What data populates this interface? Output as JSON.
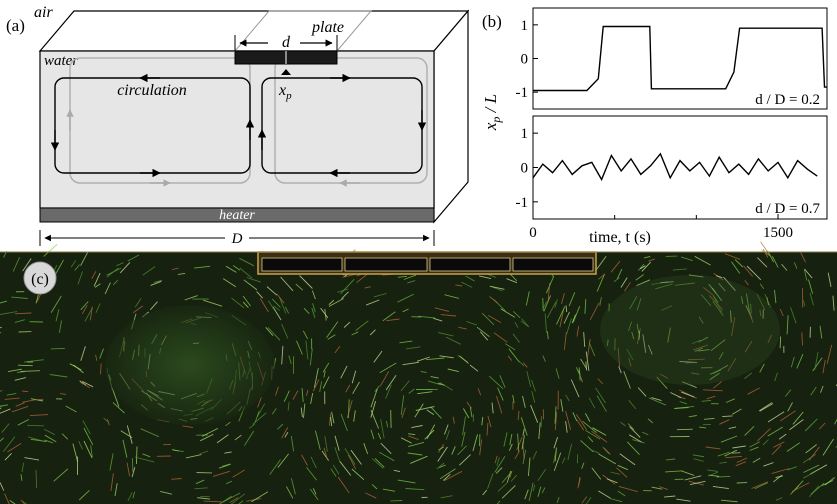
{
  "panel_a": {
    "label": "(a)",
    "air": "air",
    "water": "water",
    "plate": "plate",
    "plate_width": "d",
    "circulation": "circulation",
    "plate_position": "x",
    "plate_position_sub": "p",
    "heater": "heater",
    "tank_width": "D"
  },
  "panel_b": {
    "label": "(b)",
    "y_axis_label_var": "x",
    "y_axis_label_sub": "p",
    "y_axis_label_rest": " / L",
    "x_axis_label": "time, t (s)",
    "top_annotation": "d / D = 0.2",
    "bottom_annotation": "d / D = 0.7",
    "top_ticks": [
      "1",
      "0",
      "-1"
    ],
    "bottom_ticks": [
      "1",
      "0",
      "-1"
    ],
    "x_ticks": [
      "0",
      "1500"
    ]
  },
  "panel_c": {
    "label": "(c)"
  },
  "chart_data": [
    {
      "type": "line",
      "panel": "b-top",
      "title": "",
      "xlabel": "time, t (s)",
      "ylabel": "x_p / L",
      "annotation": "d / D = 0.2",
      "xlim": [
        0,
        1800
      ],
      "ylim": [
        -1.5,
        1.5
      ],
      "x": [
        0,
        330,
        400,
        430,
        715,
        725,
        1180,
        1230,
        1265,
        1770,
        1785,
        1800
      ],
      "y": [
        -0.95,
        -0.95,
        -0.6,
        0.95,
        0.95,
        -0.9,
        -0.9,
        -0.4,
        0.9,
        0.9,
        -0.85,
        -0.85
      ]
    },
    {
      "type": "line",
      "panel": "b-bottom",
      "title": "",
      "xlabel": "time, t (s)",
      "ylabel": "x_p / L",
      "annotation": "d / D = 0.7",
      "xlim": [
        0,
        1800
      ],
      "ylim": [
        -1.5,
        1.5
      ],
      "x": [
        0,
        60,
        120,
        180,
        240,
        300,
        360,
        420,
        480,
        540,
        600,
        660,
        720,
        780,
        840,
        900,
        960,
        1020,
        1080,
        1140,
        1200,
        1260,
        1320,
        1380,
        1440,
        1500,
        1560,
        1620,
        1680,
        1740
      ],
      "y": [
        -0.3,
        0.1,
        -0.15,
        0.2,
        -0.2,
        0.05,
        0.15,
        -0.35,
        0.35,
        -0.1,
        0.25,
        -0.2,
        0.05,
        0.4,
        -0.3,
        0.2,
        -0.1,
        0.15,
        -0.25,
        0.3,
        -0.15,
        0.1,
        -0.2,
        0.25,
        -0.1,
        0.15,
        -0.3,
        0.2,
        -0.05,
        -0.25
      ]
    }
  ]
}
